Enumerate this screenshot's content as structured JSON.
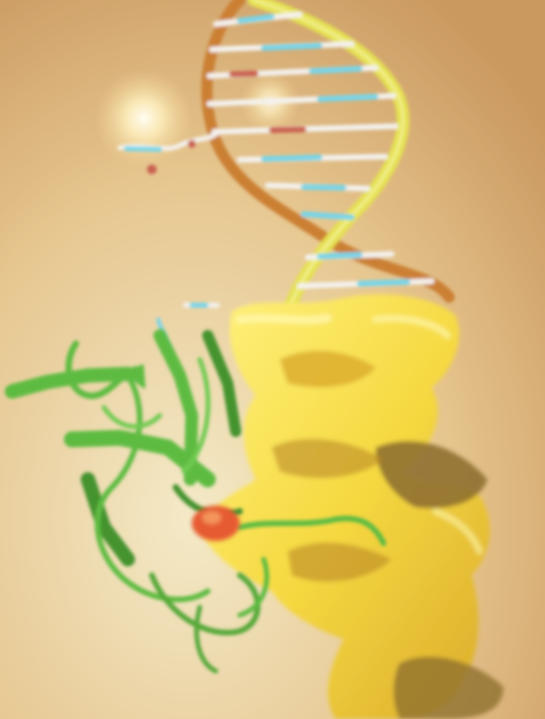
{
  "scene": {
    "subject": "molecular-illustration",
    "colors": {
      "background_light": "#f4e9c6",
      "background_dark": "#c8955a",
      "dna_strand_yellow": "#e4e04c",
      "dna_strand_orange": "#c97a2c",
      "base_pair_cyan": "#6fd4ea",
      "base_pair_white": "#f4f2ee",
      "base_pair_red": "#c85a4a",
      "protein_green": "#58b93a",
      "protein_green_dark": "#3e8f26",
      "protein_yellow": "#f6d83a",
      "protein_shadow": "#8c6b28",
      "active_site": "#e6542a",
      "glow": "#fff7d6"
    }
  }
}
